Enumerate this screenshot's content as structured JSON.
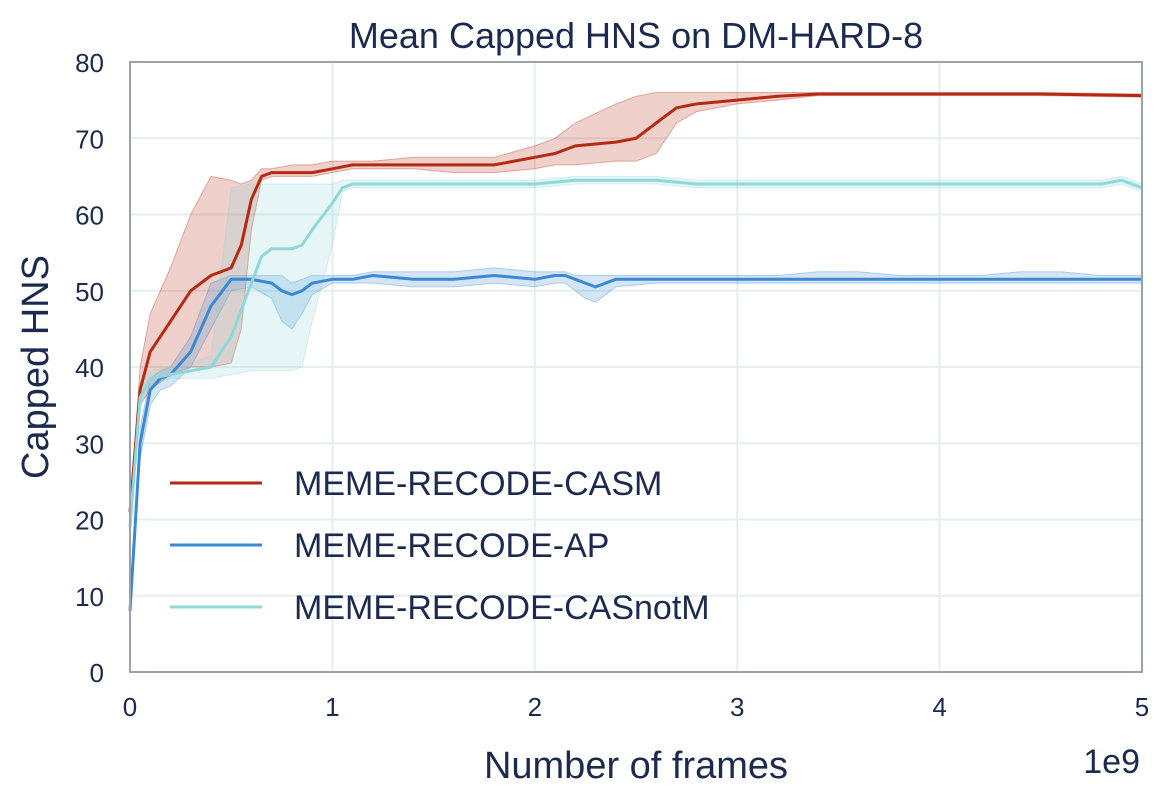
{
  "chart_data": {
    "type": "line",
    "title": "Mean Capped HNS on DM-HARD-8",
    "xlabel": "Number of frames",
    "ylabel": "Capped HNS",
    "x_multiplier_label": "1e9",
    "xlim": [
      0,
      5
    ],
    "ylim": [
      0,
      80
    ],
    "x_ticks": [
      0,
      1,
      2,
      3,
      4,
      5
    ],
    "x_tick_labels": [
      "0",
      "1",
      "2",
      "3",
      "4",
      "5"
    ],
    "y_ticks": [
      0,
      10,
      20,
      30,
      40,
      50,
      60,
      70,
      80
    ],
    "y_tick_labels": [
      "0",
      "10",
      "20",
      "30",
      "40",
      "50",
      "60",
      "70",
      "80"
    ],
    "grid": true,
    "legend_position": "lower-left",
    "series": [
      {
        "name": "MEME-RECODE-CASM",
        "color": "#b52a12",
        "x": [
          0,
          0.05,
          0.1,
          0.2,
          0.3,
          0.4,
          0.5,
          0.55,
          0.6,
          0.65,
          0.7,
          0.8,
          0.9,
          1.0,
          1.1,
          1.2,
          1.4,
          1.6,
          1.8,
          2.0,
          2.1,
          2.2,
          2.4,
          2.5,
          2.6,
          2.7,
          2.8,
          3.0,
          3.2,
          3.4,
          3.6,
          4.0,
          4.5,
          5.0
        ],
        "y": [
          21,
          37,
          42,
          46,
          50,
          52,
          53,
          56,
          62,
          65,
          65.5,
          65.5,
          65.5,
          66,
          66.5,
          66.5,
          66.5,
          66.5,
          66.5,
          67.5,
          68,
          69,
          69.5,
          70,
          72,
          74,
          74.5,
          75,
          75.5,
          75.8,
          75.8,
          75.8,
          75.8,
          75.6
        ],
        "lower": [
          21,
          35,
          37,
          39,
          40,
          40,
          40.5,
          45,
          58,
          64.5,
          65,
          65,
          65,
          65.5,
          66,
          66,
          66,
          65.5,
          65.5,
          66,
          66.5,
          66.5,
          67,
          67,
          68,
          72,
          73.5,
          74.5,
          75,
          75.6,
          75.6,
          75.6,
          75.6,
          75.4
        ],
        "upper": [
          21,
          40,
          47,
          53,
          60,
          65,
          64.5,
          64,
          64.5,
          66,
          66,
          66.5,
          66.5,
          67,
          67,
          67,
          67.5,
          67.5,
          67.5,
          69,
          70,
          72,
          74.5,
          75.5,
          76,
          76,
          76,
          76,
          76,
          76,
          76,
          76,
          76,
          75.8
        ]
      },
      {
        "name": "MEME-RECODE-AP",
        "color": "#3b88d4",
        "x": [
          0,
          0.05,
          0.1,
          0.15,
          0.2,
          0.3,
          0.4,
          0.5,
          0.6,
          0.7,
          0.75,
          0.8,
          0.85,
          0.9,
          1.0,
          1.1,
          1.2,
          1.4,
          1.6,
          1.8,
          2.0,
          2.1,
          2.15,
          2.2,
          2.25,
          2.3,
          2.4,
          2.6,
          2.8,
          3.0,
          3.2,
          3.4,
          3.6,
          3.8,
          4.0,
          4.2,
          4.4,
          4.6,
          4.8,
          5.0
        ],
        "y": [
          8,
          30,
          37,
          38.5,
          39,
          42,
          48,
          51.5,
          51.5,
          51,
          50,
          49.5,
          50,
          51,
          51.5,
          51.5,
          52,
          51.5,
          51.5,
          52,
          51.5,
          52,
          52,
          51.5,
          51,
          50.5,
          51.5,
          51.5,
          51.5,
          51.5,
          51.5,
          51.5,
          51.5,
          51.5,
          51.5,
          51.5,
          51.5,
          51.5,
          51.5,
          51.5
        ],
        "lower": [
          8,
          28,
          35,
          37,
          37.5,
          40,
          45,
          50,
          50.5,
          49,
          46,
          45,
          47,
          49.5,
          51,
          51,
          51,
          50.5,
          50.5,
          51,
          50.5,
          51,
          51,
          50,
          49,
          48.5,
          50.5,
          51,
          51,
          51,
          51,
          51,
          51,
          51,
          51,
          51,
          51,
          51,
          51,
          51
        ],
        "upper": [
          8,
          32,
          38.5,
          39.5,
          40,
          44,
          51,
          52,
          52,
          52,
          52,
          51,
          51.5,
          52,
          52,
          52,
          52.5,
          52.5,
          52.5,
          53,
          52.5,
          52.5,
          52.5,
          52,
          52,
          52,
          52,
          52,
          52,
          52,
          52,
          52.5,
          52.5,
          52,
          52,
          52,
          52.5,
          52.5,
          52,
          52
        ]
      },
      {
        "name": "MEME-RECODE-CASnotM",
        "color": "#8fd8d9",
        "x": [
          0,
          0.05,
          0.1,
          0.2,
          0.3,
          0.4,
          0.5,
          0.6,
          0.65,
          0.7,
          0.8,
          0.85,
          0.9,
          1.0,
          1.05,
          1.1,
          1.4,
          1.8,
          2.0,
          2.2,
          2.4,
          2.6,
          2.8,
          3.0,
          3.2,
          3.4,
          3.6,
          3.8,
          4.0,
          4.2,
          4.4,
          4.6,
          4.8,
          4.9,
          5.0
        ],
        "y": [
          19,
          36,
          38.5,
          39,
          39.5,
          40,
          44,
          51,
          54.5,
          55.5,
          55.5,
          56,
          58,
          61.5,
          63.5,
          64,
          64,
          64,
          64,
          64.5,
          64.5,
          64.5,
          64,
          64,
          64,
          64,
          64,
          64,
          64,
          64,
          64,
          64,
          64,
          64.5,
          63.5
        ],
        "lower": [
          19,
          35,
          37.5,
          38.5,
          38.5,
          38.5,
          39,
          39.5,
          39.5,
          39.5,
          39.5,
          40,
          46,
          56,
          63,
          63.5,
          63.5,
          63.5,
          63.5,
          64,
          64,
          64,
          63.5,
          63.5,
          63.5,
          63.5,
          63.5,
          63.5,
          63.5,
          63.5,
          63.5,
          63.5,
          63.5,
          64,
          63
        ],
        "upper": [
          19,
          38,
          39.5,
          40,
          40.5,
          41.5,
          63.5,
          64,
          64,
          64,
          64,
          64,
          64,
          64,
          64.5,
          64.5,
          64.5,
          64.5,
          64.5,
          65,
          65,
          65,
          64.5,
          64.5,
          64.5,
          64.5,
          64.5,
          64.5,
          64.5,
          64.5,
          64.5,
          64.5,
          64.5,
          65,
          64
        ]
      }
    ]
  }
}
